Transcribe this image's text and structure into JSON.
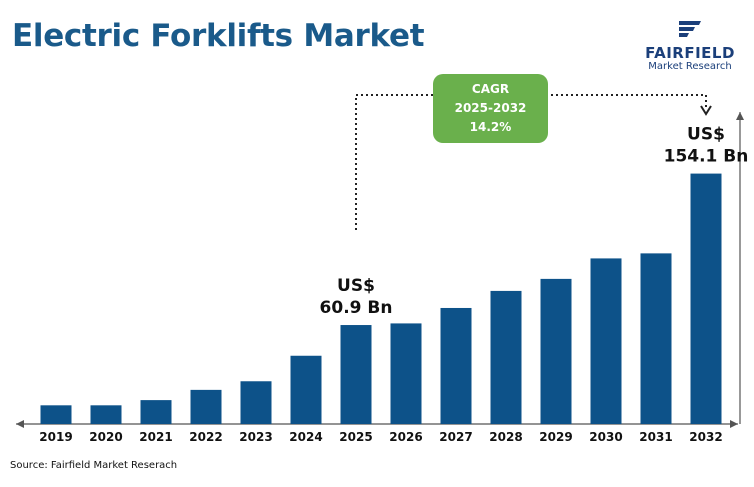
{
  "header": {
    "title": "Electric Forklifts Market"
  },
  "logo": {
    "name": "FAIRFIELD",
    "subtitle": "Market Research",
    "icon": "fairfield-logo-mark",
    "color": "#1b3f7a"
  },
  "cagr_box": {
    "label": "CAGR",
    "period": "2025-2032",
    "value": "14.2%",
    "color": "#6ab04c"
  },
  "footer": {
    "source": "Source: Fairfield Market Reserach"
  },
  "colors": {
    "bar": "#0d5289",
    "title": "#1a5a8a",
    "axis": "#555555"
  },
  "chart_data": {
    "type": "bar",
    "title": "Electric Forklifts Market",
    "categories": [
      "2019",
      "2020",
      "2021",
      "2022",
      "2023",
      "2024",
      "2025",
      "2026",
      "2027",
      "2028",
      "2029",
      "2030",
      "2031",
      "2032"
    ],
    "values": [
      11.5,
      11.5,
      14.7,
      21.0,
      26.3,
      42.0,
      60.9,
      61.9,
      71.4,
      81.9,
      89.3,
      101.9,
      105.0,
      154.1
    ],
    "ylim": [
      0,
      160
    ],
    "grid": false,
    "annotations": [
      {
        "category": "2025",
        "line1": "US$",
        "line2": "60.9 Bn"
      },
      {
        "category": "2032",
        "line1": "US$",
        "line2": "154.1 Bn"
      }
    ],
    "xlabel": "",
    "ylabel": ""
  }
}
